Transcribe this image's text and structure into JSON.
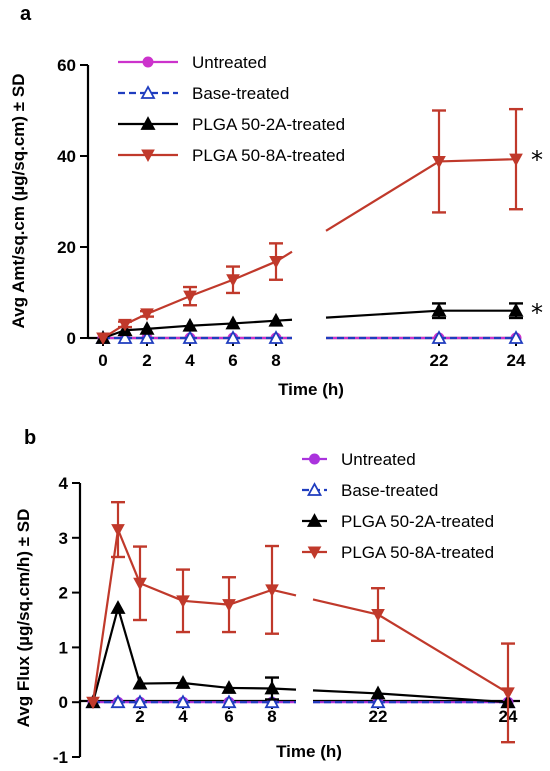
{
  "chart_data": [
    {
      "type": "line",
      "panel_label": "a",
      "xlabel": "Time (h)",
      "ylabel": "Avg Amt/sq.cm (µg/sq.cm) ± SD",
      "xticks": [
        0,
        2,
        4,
        6,
        8,
        22,
        24
      ],
      "yticks": [
        0,
        20,
        40,
        60
      ],
      "ylim": [
        0,
        60
      ],
      "axis_break": "between 8 and 22",
      "legend_position": "top-left",
      "series": [
        {
          "name": "Untreated",
          "color": "#cc33cc",
          "marker": "circle",
          "x": [
            0,
            1,
            2,
            4,
            6,
            8,
            22,
            24
          ],
          "y": [
            0,
            0,
            0,
            0,
            0,
            0,
            0,
            0
          ],
          "sd": [
            0,
            0,
            0,
            0,
            0,
            0,
            0,
            0
          ]
        },
        {
          "name": "Base-treated",
          "color": "#1f3dbf",
          "marker": "open-triangle-up",
          "dashed": true,
          "x": [
            0,
            1,
            2,
            4,
            6,
            8,
            22,
            24
          ],
          "y": [
            0,
            0,
            0,
            0,
            0,
            0,
            0,
            0
          ],
          "sd": [
            0,
            0,
            0,
            0,
            0,
            0,
            0,
            0
          ]
        },
        {
          "name": "PLGA 50-2A-treated",
          "color": "#000000",
          "marker": "triangle-up",
          "x": [
            0,
            1,
            2,
            4,
            6,
            8,
            22,
            24
          ],
          "y": [
            0,
            1.7,
            2.0,
            2.7,
            3.2,
            3.8,
            6.0,
            6.0
          ],
          "sd": [
            0,
            0,
            0,
            0,
            0,
            0,
            1.6,
            1.6
          ]
        },
        {
          "name": "PLGA 50-8A-treated",
          "color": "#c0392b",
          "marker": "triangle-down",
          "x": [
            0,
            1,
            2,
            4,
            6,
            8,
            22,
            24
          ],
          "y": [
            0,
            3.0,
            5.3,
            9.2,
            12.8,
            16.8,
            38.8,
            39.3
          ],
          "sd": [
            0,
            0.6,
            0.6,
            2.0,
            2.9,
            4.0,
            11.2,
            11.0
          ]
        }
      ],
      "annotations": [
        {
          "text": "*",
          "near_series": "PLGA 50-8A-treated"
        },
        {
          "text": "*",
          "near_series": "PLGA 50-2A-treated"
        }
      ]
    },
    {
      "type": "line",
      "panel_label": "b",
      "xlabel": "Time (h)",
      "ylabel": "Avg Flux (µg/sq.cm/h) ± SD",
      "xticks": [
        2,
        4,
        6,
        8,
        22,
        24
      ],
      "yticks": [
        -1,
        0,
        1,
        2,
        3,
        4
      ],
      "ylim": [
        -1,
        4
      ],
      "axis_break": "between 8 and 22",
      "legend_position": "top-right",
      "series": [
        {
          "name": "Untreated",
          "color": "#aa33dd",
          "marker": "circle",
          "x": [
            0,
            1,
            2,
            4,
            6,
            8,
            22,
            24
          ],
          "y": [
            0,
            0,
            0,
            0,
            0,
            0,
            0,
            0
          ],
          "sd": [
            0,
            0,
            0,
            0,
            0,
            0,
            0,
            0
          ]
        },
        {
          "name": "Base-treated",
          "color": "#1f3dbf",
          "marker": "open-triangle-up",
          "dashed": true,
          "x": [
            0,
            1,
            2,
            4,
            6,
            8,
            22,
            24
          ],
          "y": [
            0,
            0,
            0,
            0,
            0,
            0,
            0,
            0
          ],
          "sd": [
            0,
            0,
            0,
            0,
            0,
            0,
            0,
            0
          ]
        },
        {
          "name": "PLGA 50-2A-treated",
          "color": "#000000",
          "marker": "triangle-up",
          "x": [
            0,
            1,
            2,
            4,
            6,
            8,
            22,
            24
          ],
          "y": [
            0,
            1.72,
            0.34,
            0.35,
            0.26,
            0.25,
            0.16,
            0.0
          ],
          "sd": [
            0,
            0,
            0,
            0,
            0,
            0.2,
            0,
            0
          ]
        },
        {
          "name": "PLGA 50-8A-treated",
          "color": "#c0392b",
          "marker": "triangle-down",
          "x": [
            0,
            1,
            2,
            4,
            6,
            8,
            22,
            24
          ],
          "y": [
            0,
            3.15,
            2.17,
            1.85,
            1.78,
            2.05,
            1.6,
            0.17
          ],
          "sd": [
            0,
            0.5,
            0.67,
            0.57,
            0.5,
            0.8,
            0.48,
            0.9
          ]
        }
      ]
    }
  ]
}
